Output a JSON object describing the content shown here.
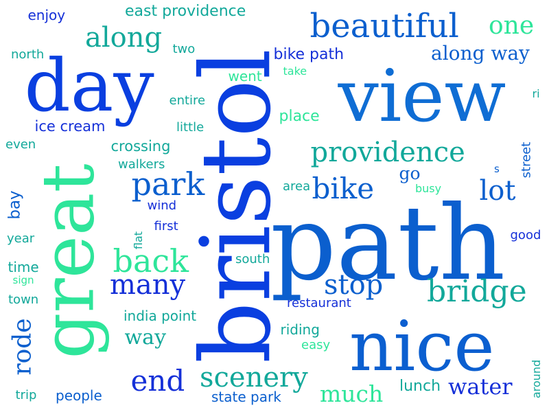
{
  "colors": {
    "background": "#ffffff",
    "blue_dark": "#1530d8",
    "blue_mid": "#0b5fce",
    "blue_light": "#0f7ad6",
    "teal": "#12a89a",
    "mint": "#2ee59a",
    "green": "#1fd18b"
  },
  "words": [
    {
      "text": "bristol",
      "color": "#0a3fe0"
    },
    {
      "text": "path",
      "color": "#0b5fce"
    },
    {
      "text": "view",
      "color": "#0f6dd4"
    },
    {
      "text": "nice",
      "color": "#0b5fd0"
    },
    {
      "text": "day",
      "color": "#0a3fe0"
    },
    {
      "text": "great",
      "color": "#2ee59a"
    },
    {
      "text": "beautiful",
      "color": "#0b5fce"
    },
    {
      "text": "providence",
      "color": "#12a89a"
    },
    {
      "text": "along",
      "color": "#12a89a"
    },
    {
      "text": "one",
      "color": "#2ee59a"
    },
    {
      "text": "park",
      "color": "#0b5fce"
    },
    {
      "text": "bike",
      "color": "#0b5fce"
    },
    {
      "text": "lot",
      "color": "#0b5fce"
    },
    {
      "text": "back",
      "color": "#2ee59a"
    },
    {
      "text": "many",
      "color": "#1530d8"
    },
    {
      "text": "stop",
      "color": "#0b5fce"
    },
    {
      "text": "bridge",
      "color": "#12a89a"
    },
    {
      "text": "end",
      "color": "#1530d8"
    },
    {
      "text": "scenery",
      "color": "#12a89a"
    },
    {
      "text": "much",
      "color": "#2ee59a"
    },
    {
      "text": "water",
      "color": "#1530d8"
    },
    {
      "text": "rode",
      "color": "#0b5fce"
    },
    {
      "text": "way",
      "color": "#12a89a"
    },
    {
      "text": "along way",
      "color": "#0b5fce"
    },
    {
      "text": "east providence",
      "color": "#12a89a"
    },
    {
      "text": "enjoy",
      "color": "#1530d8"
    },
    {
      "text": "north",
      "color": "#12a89a"
    },
    {
      "text": "two",
      "color": "#12a89a"
    },
    {
      "text": "bike path",
      "color": "#1530d8"
    },
    {
      "text": "went",
      "color": "#2ee59a"
    },
    {
      "text": "take",
      "color": "#2ee59a"
    },
    {
      "text": "entire",
      "color": "#12a89a"
    },
    {
      "text": "ri",
      "color": "#12a89a"
    },
    {
      "text": "ice cream",
      "color": "#1530d8"
    },
    {
      "text": "little",
      "color": "#12a89a"
    },
    {
      "text": "place",
      "color": "#2ee59a"
    },
    {
      "text": "even",
      "color": "#12a89a"
    },
    {
      "text": "crossing",
      "color": "#12a89a"
    },
    {
      "text": "walkers",
      "color": "#12a89a"
    },
    {
      "text": "street",
      "color": "#0b5fce"
    },
    {
      "text": "go",
      "color": "#0b5fce"
    },
    {
      "text": "s",
      "color": "#0b5fce"
    },
    {
      "text": "bay",
      "color": "#0b5fce"
    },
    {
      "text": "area",
      "color": "#12a89a"
    },
    {
      "text": "busy",
      "color": "#2ee59a"
    },
    {
      "text": "wind",
      "color": "#1530d8"
    },
    {
      "text": "flat",
      "color": "#12a89a"
    },
    {
      "text": "first",
      "color": "#1530d8"
    },
    {
      "text": "year",
      "color": "#12a89a"
    },
    {
      "text": "good",
      "color": "#1530d8"
    },
    {
      "text": "south",
      "color": "#12a89a"
    },
    {
      "text": "time",
      "color": "#12a89a"
    },
    {
      "text": "sign",
      "color": "#2ee59a"
    },
    {
      "text": "town",
      "color": "#12a89a"
    },
    {
      "text": "restaurant",
      "color": "#1530d8"
    },
    {
      "text": "india point",
      "color": "#12a89a"
    },
    {
      "text": "riding",
      "color": "#12a89a"
    },
    {
      "text": "easy",
      "color": "#2ee59a"
    },
    {
      "text": "around",
      "color": "#12a89a"
    },
    {
      "text": "trip",
      "color": "#12a89a"
    },
    {
      "text": "people",
      "color": "#0b5fce"
    },
    {
      "text": "state park",
      "color": "#0b5fce"
    },
    {
      "text": "lunch",
      "color": "#12a89a"
    }
  ]
}
